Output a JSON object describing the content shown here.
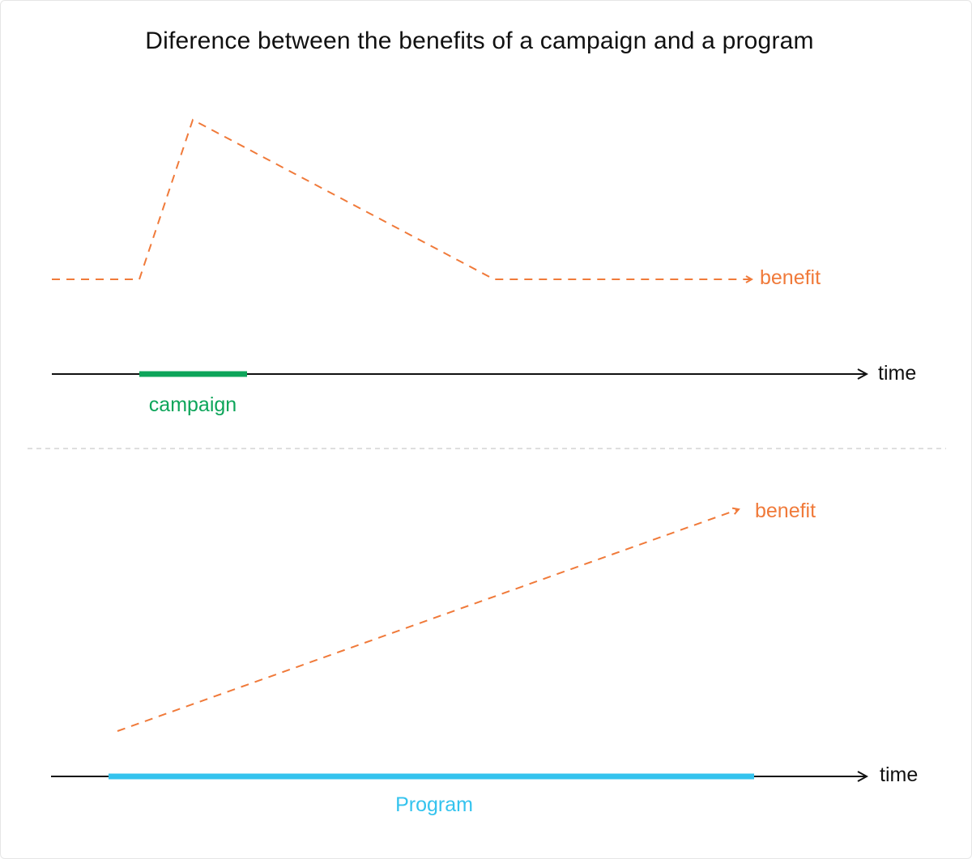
{
  "title": "Diference between the benefits of a campaign and a program",
  "colors": {
    "benefit": "#f07a3a",
    "campaign": "#0da55a",
    "program": "#34c3ee",
    "axis": "#111111",
    "divider": "#d4d4d4"
  },
  "panels": {
    "campaign": {
      "benefit_label": "benefit",
      "axis_label": "time",
      "bar_label": "campaign"
    },
    "program": {
      "benefit_label": "benefit",
      "axis_label": "time",
      "bar_label": "Program"
    }
  }
}
